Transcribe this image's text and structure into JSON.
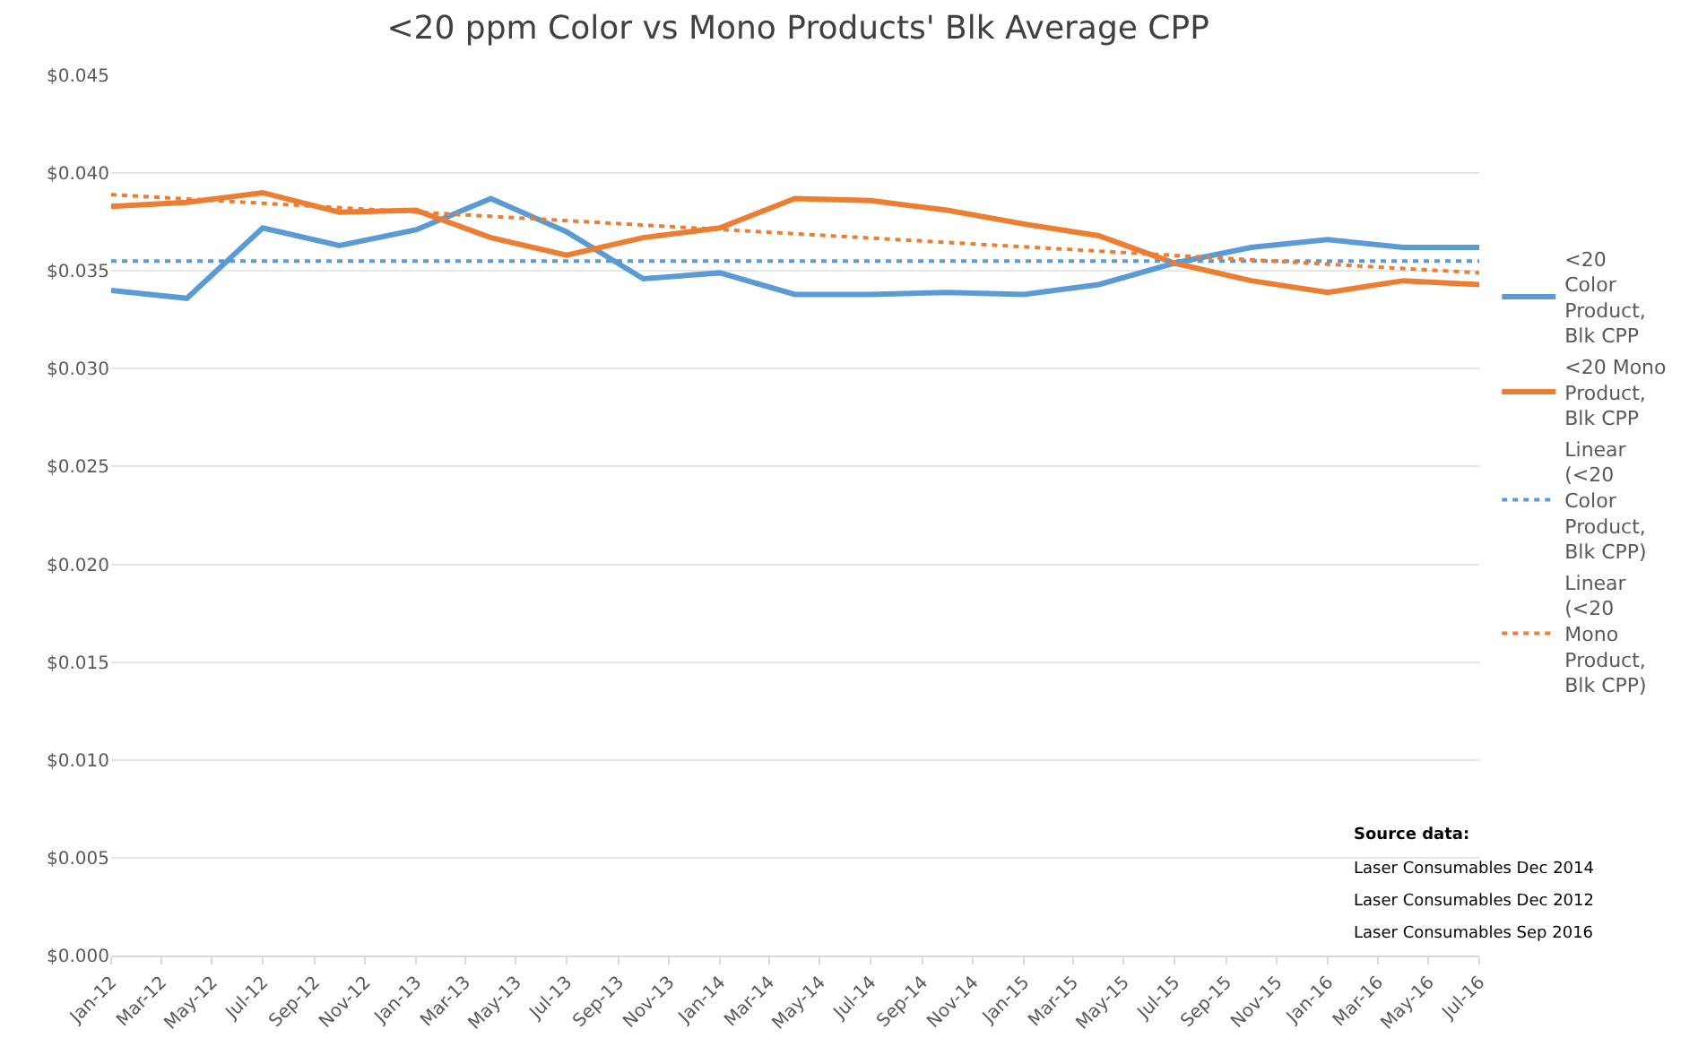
{
  "chart_data": {
    "type": "line",
    "title": "<20 ppm Color vs Mono Products' Blk Average CPP",
    "x": [
      "2012-01",
      "2012-04",
      "2012-07",
      "2012-10",
      "2013-01",
      "2013-04",
      "2013-07",
      "2013-10",
      "2014-01",
      "2014-04",
      "2014-07",
      "2014-10",
      "2015-01",
      "2015-04",
      "2015-07",
      "2015-10",
      "2016-01",
      "2016-04",
      "2016-07"
    ],
    "series": [
      {
        "name": "<20 Color Product, Blk CPP",
        "color": "#5b9bd5",
        "line_style": "solid",
        "values": [
          0.034,
          0.0336,
          0.0372,
          0.0363,
          0.0371,
          0.0387,
          0.037,
          0.0346,
          0.0349,
          0.0338,
          0.0338,
          0.0339,
          0.0338,
          0.0343,
          0.0354,
          0.0362,
          0.0366,
          0.0362,
          0.0362
        ]
      },
      {
        "name": "<20 Mono Product, Blk CPP",
        "color": "#ed7d31",
        "line_style": "solid",
        "values": [
          0.0383,
          0.0385,
          0.039,
          0.038,
          0.0381,
          0.0367,
          0.0358,
          0.0367,
          0.0372,
          0.0387,
          0.0386,
          0.0381,
          0.0374,
          0.0368,
          0.0354,
          0.0345,
          0.0339,
          0.0345,
          0.0343
        ]
      },
      {
        "name": "Linear (<20 Color Product, Blk CPP)",
        "color": "#5b9bd5",
        "line_style": "dotted",
        "x": [
          "2012-01",
          "2016-07"
        ],
        "values": [
          0.0355,
          0.0355
        ]
      },
      {
        "name": "Linear (<20 Mono Product, Blk CPP)",
        "color": "#ed7d31",
        "line_style": "dotted",
        "x": [
          "2012-01",
          "2016-07"
        ],
        "values": [
          0.0389,
          0.0349
        ]
      }
    ],
    "xlim": [
      "2012-01",
      "2016-07"
    ],
    "xticks": [
      {
        "value": "2012-01",
        "label": "Jan-12"
      },
      {
        "value": "2012-03",
        "label": "Mar-12"
      },
      {
        "value": "2012-05",
        "label": "May-12"
      },
      {
        "value": "2012-07",
        "label": "Jul-12"
      },
      {
        "value": "2012-09",
        "label": "Sep-12"
      },
      {
        "value": "2012-11",
        "label": "Nov-12"
      },
      {
        "value": "2013-01",
        "label": "Jan-13"
      },
      {
        "value": "2013-03",
        "label": "Mar-13"
      },
      {
        "value": "2013-05",
        "label": "May-13"
      },
      {
        "value": "2013-07",
        "label": "Jul-13"
      },
      {
        "value": "2013-09",
        "label": "Sep-13"
      },
      {
        "value": "2013-11",
        "label": "Nov-13"
      },
      {
        "value": "2014-01",
        "label": "Jan-14"
      },
      {
        "value": "2014-03",
        "label": "Mar-14"
      },
      {
        "value": "2014-05",
        "label": "May-14"
      },
      {
        "value": "2014-07",
        "label": "Jul-14"
      },
      {
        "value": "2014-09",
        "label": "Sep-14"
      },
      {
        "value": "2014-11",
        "label": "Nov-14"
      },
      {
        "value": "2015-01",
        "label": "Jan-15"
      },
      {
        "value": "2015-03",
        "label": "Mar-15"
      },
      {
        "value": "2015-05",
        "label": "May-15"
      },
      {
        "value": "2015-07",
        "label": "Jul-15"
      },
      {
        "value": "2015-09",
        "label": "Sep-15"
      },
      {
        "value": "2015-11",
        "label": "Nov-15"
      },
      {
        "value": "2016-01",
        "label": "Jan-16"
      },
      {
        "value": "2016-03",
        "label": "Mar-16"
      },
      {
        "value": "2016-05",
        "label": "May-16"
      },
      {
        "value": "2016-07",
        "label": "Jul-16"
      }
    ],
    "ylim": [
      0,
      0.045
    ],
    "yticks": [
      {
        "value": 0,
        "label": "$0.000"
      },
      {
        "value": 0.005,
        "label": "$0.005"
      },
      {
        "value": 0.01,
        "label": "$0.010"
      },
      {
        "value": 0.015,
        "label": "$0.015"
      },
      {
        "value": 0.02,
        "label": "$0.020"
      },
      {
        "value": 0.025,
        "label": "$0.025"
      },
      {
        "value": 0.03,
        "label": "$0.030"
      },
      {
        "value": 0.035,
        "label": "$0.035"
      },
      {
        "value": 0.04,
        "label": "$0.040"
      },
      {
        "value": 0.045,
        "label": "$0.045"
      }
    ],
    "grid": "y",
    "legend": "right",
    "marker": "none",
    "annotations": [
      "Source data:",
      "Laser Consumables Dec 2014",
      "Laser Consumables Dec 2012",
      "Laser Consumables Sep 2016"
    ]
  }
}
